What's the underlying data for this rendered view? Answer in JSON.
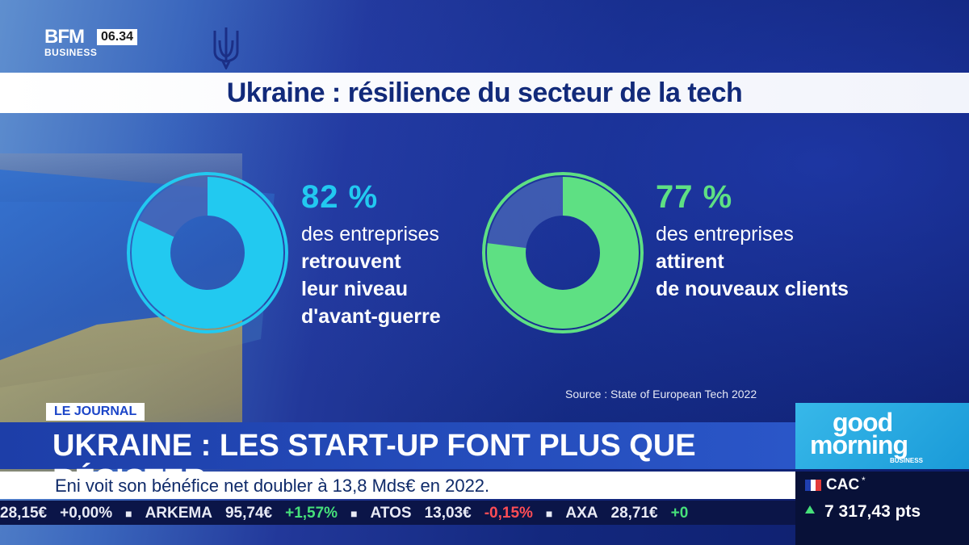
{
  "channel": {
    "logo_top": "BFM",
    "logo_bottom": "BUSINESS",
    "time": "06.34"
  },
  "title": "Ukraine : résilience du secteur de la tech",
  "stats": [
    {
      "percent": "82 %",
      "value": 82,
      "color": "#22c9f0",
      "line1": "des entreprises",
      "line2": "retrouvent",
      "line3": "leur niveau",
      "line4": "d'avant-guerre"
    },
    {
      "percent": "77 %",
      "value": 77,
      "color": "#5ee083",
      "line1": "des entreprises",
      "line2": "attirent",
      "line3": "de nouveaux clients"
    }
  ],
  "source": "Source : State of European Tech 2022",
  "banner": {
    "tag": "LE JOURNAL",
    "headline": "UKRAINE : LES START-UP FONT PLUS QUE RÉSISTER",
    "subline": "Eni voit son bénéfice net doubler à 13,8 Mds€ en 2022."
  },
  "ticker": [
    {
      "text": "28,15€",
      "dir": "neutral"
    },
    {
      "text": "+0,00%",
      "dir": "neutral"
    },
    {
      "text": "■",
      "dir": "sep"
    },
    {
      "text": "ARKEMA",
      "dir": "neutral"
    },
    {
      "text": "95,74€",
      "dir": "neutral"
    },
    {
      "text": "+1,57%",
      "dir": "up"
    },
    {
      "text": "■",
      "dir": "sep"
    },
    {
      "text": "ATOS",
      "dir": "neutral"
    },
    {
      "text": "13,03€",
      "dir": "neutral"
    },
    {
      "text": "-0,15%",
      "dir": "down"
    },
    {
      "text": "■",
      "dir": "sep"
    },
    {
      "text": "AXA",
      "dir": "neutral"
    },
    {
      "text": "28,71€",
      "dir": "neutral"
    },
    {
      "text": "+0",
      "dir": "up"
    }
  ],
  "show": {
    "line1": "good",
    "line2": "morning",
    "line3": "BUSINESS"
  },
  "index": {
    "name": "CAC",
    "marker": "*",
    "value": "7 317,43 pts",
    "direction": "up"
  }
}
